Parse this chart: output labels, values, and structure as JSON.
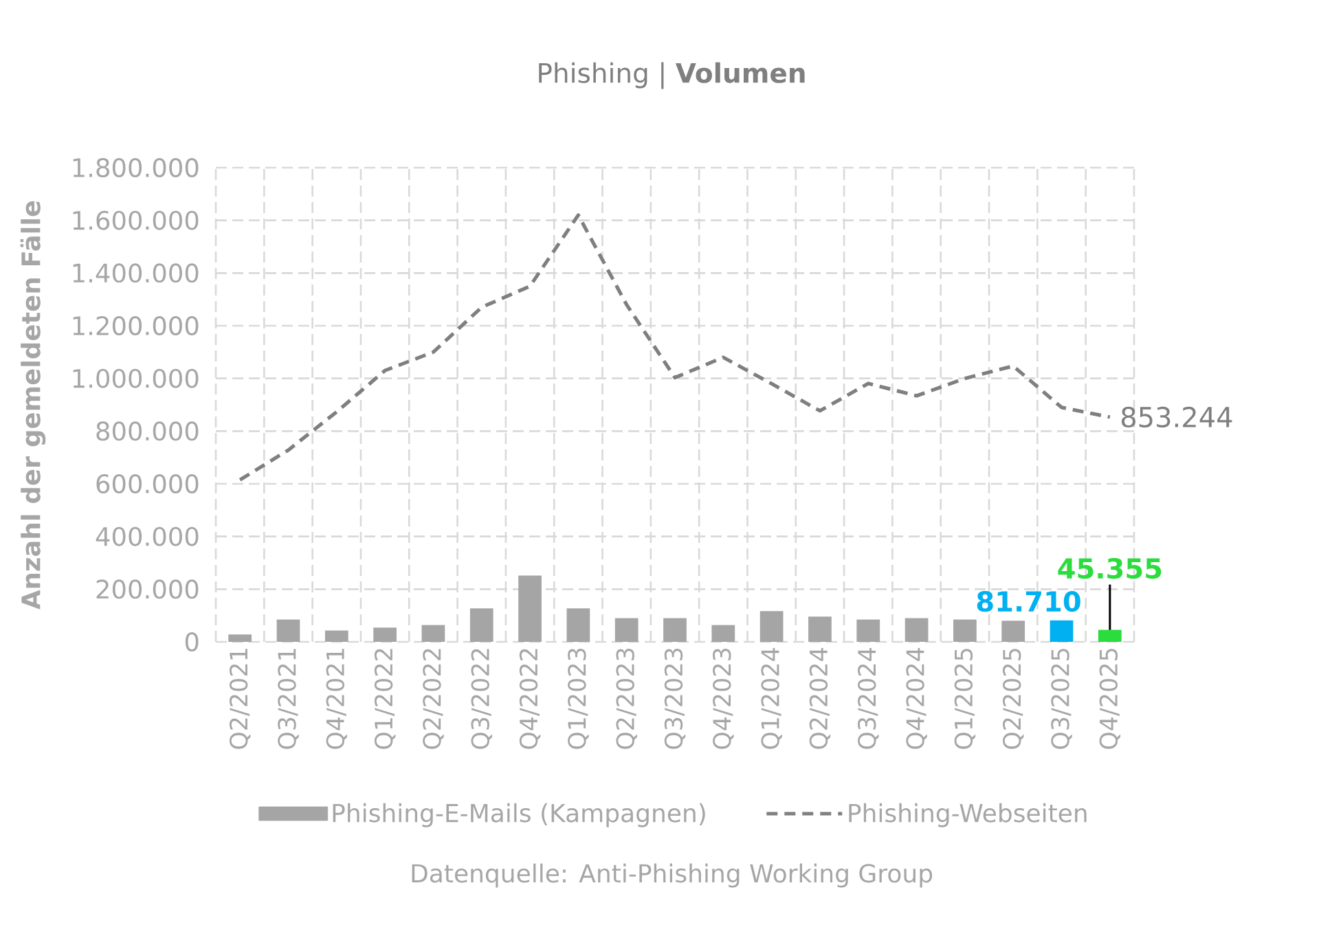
{
  "chart_data": {
    "type": "bar",
    "title": "Phishing | **Volumen**",
    "ylabel": "Anzahl der gemeldeten Fälle",
    "annotations": [
      "Datenquelle: Anti-Phishing Working Group"
    ],
    "categories": [
      "Q2/2021",
      "Q3/2021",
      "Q4/2021",
      "Q1/2022",
      "Q2/2022",
      "Q3/2022",
      "Q4/2022",
      "Q1/2023",
      "Q2/2023",
      "Q3/2023",
      "Q4/2023",
      "Q1/2024",
      "Q2/2024",
      "Q3/2024",
      "Q4/2024",
      "Q1/2025",
      "Q2/2025",
      "Q3/2025",
      "Q4/2025"
    ],
    "series": [
      {
        "name": "Phishing-E-Mails (Kampagnen)",
        "color": "#a5a5a5",
        "colors": [
          "#a5a5a5",
          "#a5a5a5",
          "#a5a5a5",
          "#a5a5a5",
          "#a5a5a5",
          "#a5a5a5",
          "#a5a5a5",
          "#a5a5a5",
          "#a5a5a5",
          "#a5a5a5",
          "#a5a5a5",
          "#a5a5a5",
          "#a5a5a5",
          "#a5a5a5",
          "#a5a5a5",
          "#a5a5a5",
          "#a5a5a5",
          "#00b0f0",
          "#2adc3c"
        ],
        "values": [
          28000,
          85000,
          43000,
          54000,
          64000,
          127000,
          252000,
          127000,
          90000,
          90000,
          64000,
          117000,
          96000,
          85000,
          90000,
          85000,
          80000,
          81710,
          45355
        ],
        "value_labels": [
          null,
          null,
          null,
          null,
          null,
          null,
          null,
          null,
          null,
          null,
          null,
          null,
          null,
          null,
          null,
          null,
          null,
          "81.710",
          "45.355"
        ]
      },
      {
        "name": "Phishing-Webseiten",
        "type": "line",
        "color": "#7f7f7f",
        "line_style": "dashed",
        "values": [
          615000,
          728000,
          873000,
          1030000,
          1100000,
          1270000,
          1350000,
          1620000,
          1280000,
          1003000,
          1080000,
          980000,
          877000,
          981000,
          934000,
          1000000,
          1047000,
          890000,
          853244
        ],
        "value_labels": [
          null,
          null,
          null,
          null,
          null,
          null,
          null,
          null,
          null,
          null,
          null,
          null,
          null,
          null,
          null,
          null,
          null,
          null,
          "853.244"
        ]
      }
    ],
    "ylim": [
      0,
      1800000
    ],
    "yticks": [
      0,
      {
        "value": 200000,
        "label": "200.000"
      },
      {
        "value": 400000,
        "label": "400.000"
      },
      {
        "value": 600000,
        "label": "600.000"
      },
      {
        "value": 800000,
        "label": "800.000"
      },
      {
        "value": 1000000,
        "label": "1.000.000"
      },
      {
        "value": 1200000,
        "label": "1.200.000"
      },
      {
        "value": 1400000,
        "label": "1.400.000"
      },
      {
        "value": 1600000,
        "label": "1.600.000"
      },
      {
        "value": 1800000,
        "label": "1.800.000"
      }
    ],
    "grid": true,
    "legend": "bottom"
  }
}
